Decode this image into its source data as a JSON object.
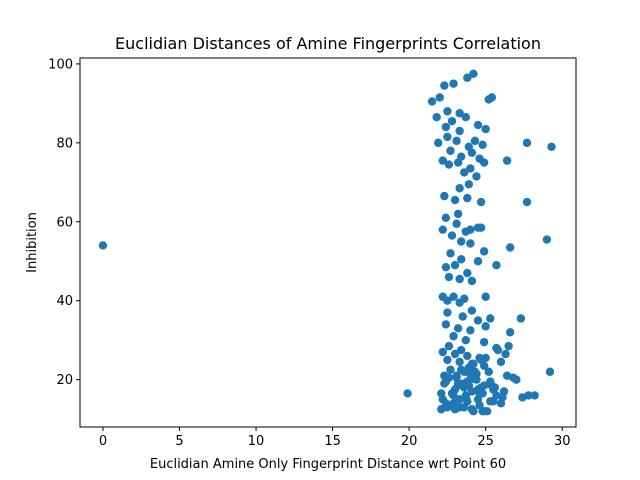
{
  "chart_data": {
    "type": "scatter",
    "title": "Euclidian Distances of Amine Fingerprints Correlation",
    "xlabel": "Euclidian Amine Only Fingerprint Distance wrt Point 60",
    "ylabel": "Inhibition",
    "xlim": [
      -1.5,
      30.9
    ],
    "ylim": [
      8.0,
      101.5
    ],
    "xticks": [
      0,
      5,
      10,
      15,
      20,
      25,
      30
    ],
    "yticks": [
      20,
      40,
      60,
      80,
      100
    ],
    "grid": false,
    "legend": "none",
    "marker_color": "#1f77b4",
    "series": [
      {
        "x": [
          0.0,
          19.9,
          29.2,
          29.3,
          27.7,
          27.7,
          29.0,
          26.4,
          26.6,
          25.7,
          21.5,
          22.0,
          22.3,
          22.5,
          22.9,
          23.3,
          23.8,
          24.2,
          25.4,
          25.2,
          21.8,
          22.4,
          22.8,
          23.3,
          23.7,
          24.5,
          25.0,
          21.9,
          22.5,
          23.1,
          23.9,
          24.3,
          24.8,
          22.7,
          23.4,
          24.1,
          24.6,
          22.2,
          22.6,
          23.2,
          23.6,
          24.0,
          24.4,
          24.9,
          22.3,
          23.3,
          23.9,
          24.7,
          23.0,
          23.8,
          22.4,
          23.2,
          24.0,
          24.7,
          23.1,
          23.7,
          24.5,
          22.2,
          22.8,
          23.4,
          24.0,
          24.9,
          22.7,
          23.4,
          24.1,
          22.4,
          23.0,
          23.8,
          22.6,
          23.3,
          24.5,
          22.9,
          23.6,
          25.0,
          25.7,
          26.6,
          22.2,
          22.5,
          23.3,
          24.1,
          25.3,
          22.5,
          23.5,
          24.5,
          25.0,
          22.4,
          23.2,
          24.0,
          22.9,
          23.7,
          24.9,
          22.6,
          23.4,
          22.2,
          23.0,
          23.8,
          24.6,
          22.5,
          23.3,
          24.1,
          24.9,
          22.7,
          23.6,
          24.4,
          22.3,
          23.1,
          24.0,
          26.3,
          26.5,
          27.3,
          22.4,
          23.2,
          23.9,
          24.7,
          25.5,
          26.2,
          22.1,
          22.9,
          23.7,
          24.5,
          25.3,
          26.0,
          26.8,
          22.5,
          23.3,
          24.1,
          24.9,
          25.6,
          26.4,
          27.0,
          22.2,
          23.0,
          23.8,
          24.6,
          25.4,
          26.1,
          22.6,
          23.4,
          24.2,
          25.0,
          25.8,
          22.3,
          23.1,
          23.9,
          24.7,
          25.5,
          22.8,
          23.6,
          24.4,
          25.2,
          26.0,
          22.1,
          22.9,
          23.7,
          24.5,
          25.3,
          22.5,
          23.3,
          24.1,
          24.9,
          25.7,
          23.0,
          23.8,
          24.6,
          22.4,
          23.2,
          24.0,
          24.8,
          23.5,
          24.3,
          25.1,
          27.4,
          27.8,
          28.2,
          23.6,
          24.2,
          24.8
        ],
        "y": [
          54.0,
          16.5,
          22.0,
          79.0,
          80.0,
          65.0,
          55.5,
          75.5,
          53.5,
          49.0,
          90.5,
          91.5,
          94.5,
          88.0,
          95.0,
          87.5,
          96.5,
          97.5,
          91.5,
          91.0,
          86.5,
          84.0,
          85.5,
          83.0,
          86.5,
          84.5,
          83.5,
          80.0,
          81.5,
          80.5,
          79.0,
          80.5,
          79.5,
          78.0,
          76.5,
          77.5,
          76.0,
          75.5,
          74.5,
          75.0,
          72.5,
          73.5,
          71.5,
          75.0,
          66.5,
          68.5,
          69.5,
          65.0,
          65.5,
          66.0,
          61.0,
          62.0,
          58.0,
          58.5,
          59.5,
          57.5,
          58.5,
          58.0,
          56.5,
          55.0,
          54.5,
          52.5,
          52.0,
          50.5,
          45.0,
          48.5,
          49.0,
          47.0,
          46.0,
          45.5,
          50.0,
          41.0,
          40.5,
          41.0,
          28.0,
          32.0,
          41.0,
          40.0,
          39.5,
          37.5,
          35.5,
          37.0,
          36.0,
          35.0,
          33.5,
          34.0,
          33.0,
          32.5,
          31.0,
          30.0,
          29.5,
          28.5,
          27.5,
          27.0,
          26.5,
          26.0,
          25.5,
          25.0,
          24.5,
          24.0,
          23.5,
          22.5,
          22.0,
          21.5,
          21.0,
          20.5,
          20.0,
          26.5,
          28.5,
          35.5,
          19.5,
          19.0,
          18.5,
          18.0,
          17.5,
          17.0,
          16.5,
          16.0,
          15.5,
          15.0,
          14.5,
          14.0,
          20.5,
          13.5,
          13.0,
          12.5,
          12.0,
          18.0,
          21.0,
          20.0,
          15.0,
          17.5,
          19.5,
          16.5,
          18.5,
          15.5,
          20.5,
          22.5,
          24.0,
          25.5,
          27.5,
          19.0,
          21.0,
          23.0,
          25.0,
          14.5,
          16.5,
          18.0,
          20.0,
          22.0,
          24.5,
          12.5,
          14.0,
          16.0,
          17.5,
          19.5,
          13.0,
          15.0,
          17.0,
          18.5,
          16.0,
          12.5,
          14.5,
          13.5,
          14.0,
          18.5,
          21.5,
          16.5,
          19.0,
          22.0,
          12.0,
          15.5,
          16.0,
          16.0,
          13.0,
          12.0,
          12.0
        ]
      }
    ]
  }
}
